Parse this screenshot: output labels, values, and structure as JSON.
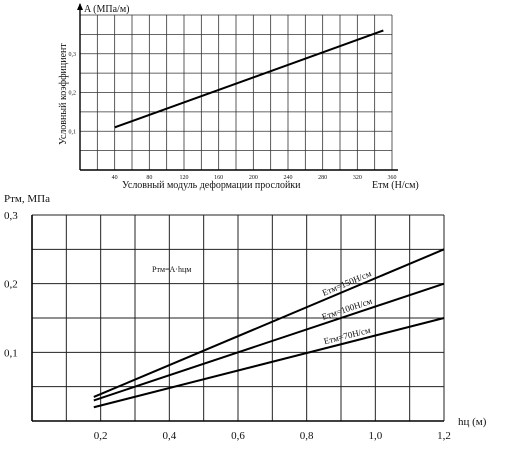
{
  "chart_data": [
    {
      "type": "line",
      "title": "",
      "ylabel": "A (МПа/м)",
      "ylabel_vertical": "Условный коэффициент",
      "xlabel": "Условный модуль деформации прослойки",
      "xunit": "Eтм (Н/см)",
      "xlim": [
        0,
        360
      ],
      "ylim": [
        0,
        0.4
      ],
      "x_tick_labels": [
        "40",
        "80",
        "120",
        "160",
        "200",
        "240",
        "280",
        "320",
        "360"
      ],
      "y_tick_labels": [
        "0,1",
        "0,2",
        "0,3"
      ],
      "grid": true,
      "series": [
        {
          "x": [
            40,
            350
          ],
          "y": [
            0.11,
            0.36
          ]
        }
      ]
    },
    {
      "type": "line",
      "title": "",
      "ylabel": "Pтм, МПа",
      "xlabel": "hц (м)",
      "xlim": [
        0,
        1.2
      ],
      "ylim": [
        0,
        0.3
      ],
      "x_tick_labels": [
        "0,2",
        "0,4",
        "0,6",
        "0,8",
        "1,0",
        "1,2"
      ],
      "y_tick_labels": [
        "0,1",
        "0,2",
        "0,3"
      ],
      "grid": true,
      "annotations": [
        {
          "text": "Pтм=A·hцм",
          "x": 0.5,
          "y": 0.228
        }
      ],
      "series": [
        {
          "name": "Eтм=150Н/см",
          "x": [
            0.18,
            1.2
          ],
          "y": [
            0.035,
            0.25
          ]
        },
        {
          "name": "Eтм=100Н/см",
          "x": [
            0.18,
            1.2
          ],
          "y": [
            0.03,
            0.2
          ]
        },
        {
          "name": "Eтм=70Н/см",
          "x": [
            0.18,
            1.2
          ],
          "y": [
            0.02,
            0.15
          ]
        }
      ]
    }
  ]
}
